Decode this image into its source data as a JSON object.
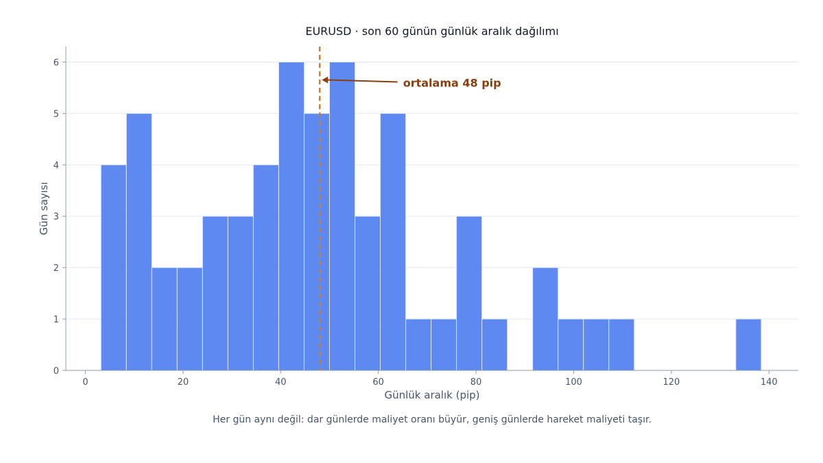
{
  "chart_data": {
    "type": "bar",
    "subtype": "histogram",
    "title": "EURUSD · son 60 günün günlük aralık dağılımı",
    "xlabel": "Günlük aralık (pip)",
    "ylabel": "Gün sayısı",
    "caption": "Her gün aynı değil: dar günlerde maliyet oranı büyür, geniş günlerde hareket maliyeti taşır.",
    "xlim": [
      -4,
      146
    ],
    "ylim": [
      0,
      6.3
    ],
    "x_ticks": [
      0,
      20,
      40,
      60,
      80,
      100,
      120,
      140
    ],
    "y_ticks": [
      0,
      1,
      2,
      3,
      4,
      5,
      6
    ],
    "bin_width": 5.2,
    "bins": [
      {
        "start": 3.2,
        "count": 4
      },
      {
        "start": 8.4,
        "count": 5
      },
      {
        "start": 13.6,
        "count": 2
      },
      {
        "start": 18.8,
        "count": 2
      },
      {
        "start": 24.0,
        "count": 3
      },
      {
        "start": 29.2,
        "count": 3
      },
      {
        "start": 34.4,
        "count": 4
      },
      {
        "start": 39.6,
        "count": 6
      },
      {
        "start": 44.8,
        "count": 5
      },
      {
        "start": 50.0,
        "count": 6
      },
      {
        "start": 55.2,
        "count": 3
      },
      {
        "start": 60.4,
        "count": 5
      },
      {
        "start": 65.6,
        "count": 1
      },
      {
        "start": 70.8,
        "count": 1
      },
      {
        "start": 76.0,
        "count": 3
      },
      {
        "start": 81.2,
        "count": 1
      },
      {
        "start": 86.4,
        "count": 0
      },
      {
        "start": 91.6,
        "count": 2
      },
      {
        "start": 96.8,
        "count": 1
      },
      {
        "start": 102.0,
        "count": 1
      },
      {
        "start": 107.2,
        "count": 1
      },
      {
        "start": 112.4,
        "count": 0
      },
      {
        "start": 117.6,
        "count": 0
      },
      {
        "start": 122.8,
        "count": 0
      },
      {
        "start": 128.0,
        "count": 0
      },
      {
        "start": 133.2,
        "count": 1
      }
    ],
    "mean_line": {
      "x": 48,
      "label": "ortalama 48 pip",
      "label_at": {
        "x": 64.5,
        "y": 5.6
      }
    },
    "grid": true,
    "colors": {
      "bar": "#4f7ff0",
      "bar_edge": "#dbe4fb",
      "mean_line": "#d97a1e",
      "annotation": "#8b3f0e",
      "grid": "#e5e9f0",
      "axis": "#8e9db0"
    }
  }
}
